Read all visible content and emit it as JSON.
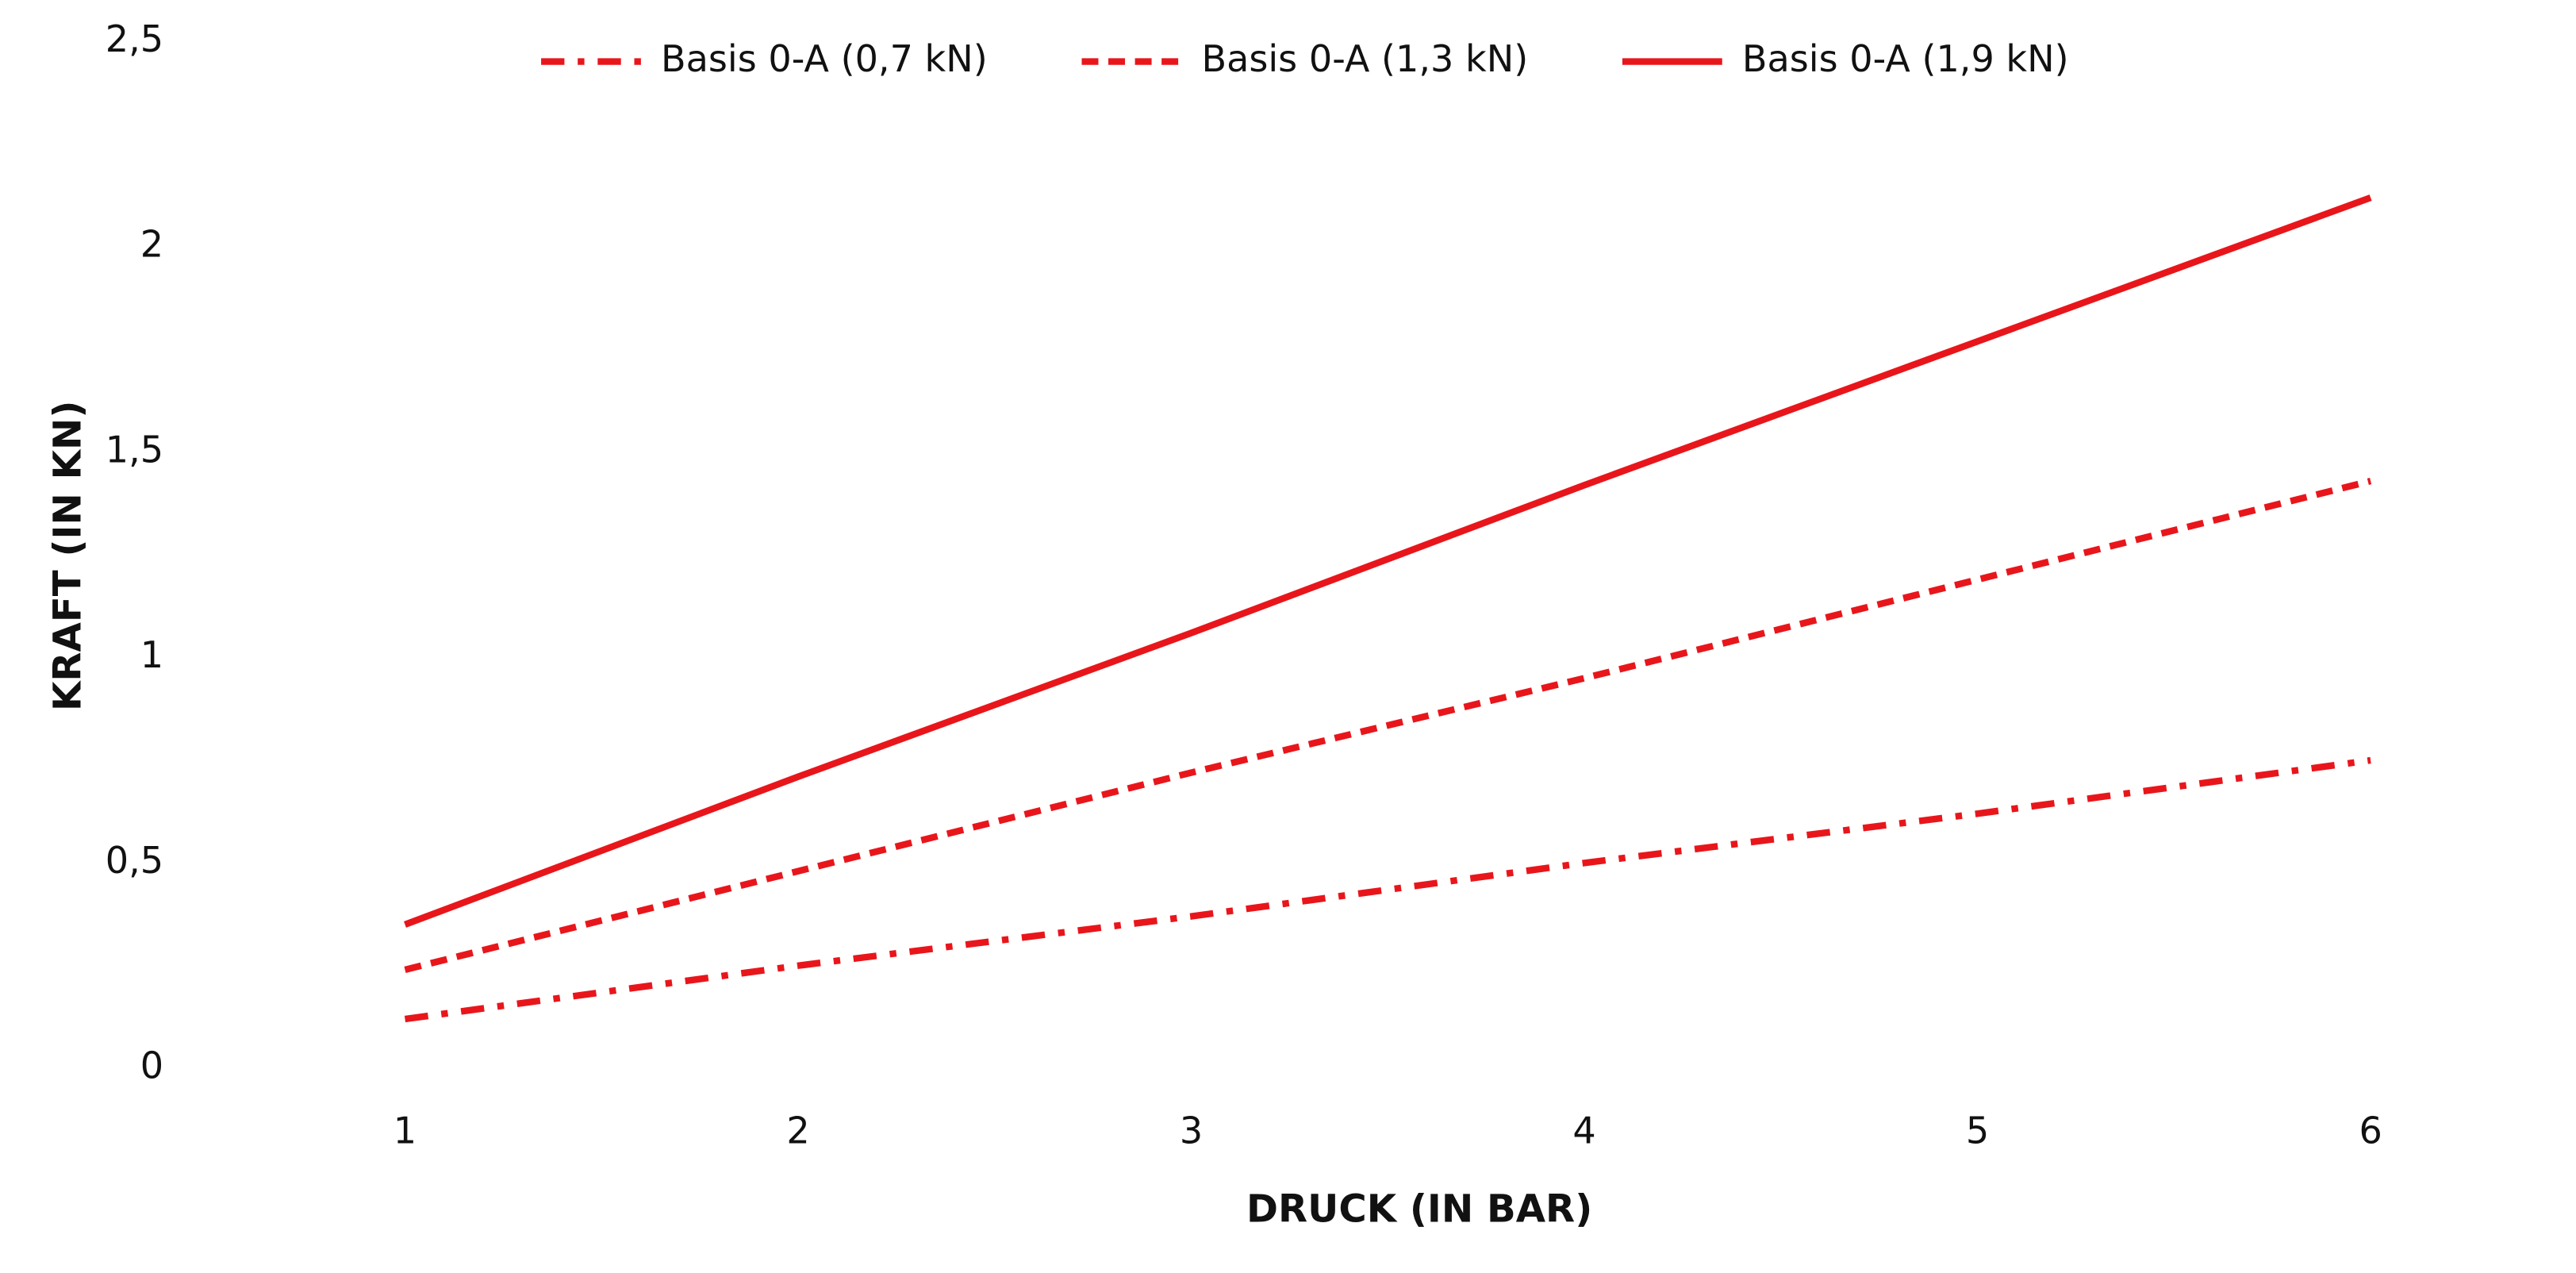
{
  "chart_data": {
    "type": "line",
    "x_label": "DRUCK (IN BAR)",
    "y_label": "KRAFT (IN KN)",
    "x": [
      1,
      2,
      3,
      4,
      5,
      6
    ],
    "xlim": [
      0.5,
      6.5
    ],
    "xticks": [
      1,
      2,
      3,
      4,
      5,
      6
    ],
    "ylim": [
      0,
      2.5
    ],
    "yticks": [
      0,
      {
        "value": 0.5,
        "label": "0,5"
      },
      1,
      {
        "value": 1.5,
        "label": "1,5"
      },
      2,
      {
        "value": 2.5,
        "label": "2,5"
      }
    ],
    "grid": false,
    "legend": "top",
    "series": [
      {
        "name": "Basis 0-A (0,7 kN)",
        "color": "#e8161b",
        "dash": "dashdot",
        "values": [
          0.12,
          0.25,
          0.37,
          0.5,
          0.62,
          0.75
        ]
      },
      {
        "name": "Basis 0-A (1,3 kN)",
        "color": "#e8161b",
        "dash": "dashed",
        "values": [
          0.24,
          0.48,
          0.72,
          0.95,
          1.19,
          1.43
        ]
      },
      {
        "name": "Basis 0-A (1,9 kN)",
        "color": "#e8161b",
        "dash": "solid",
        "values": [
          0.35,
          0.71,
          1.06,
          1.42,
          1.77,
          2.12
        ]
      }
    ]
  }
}
